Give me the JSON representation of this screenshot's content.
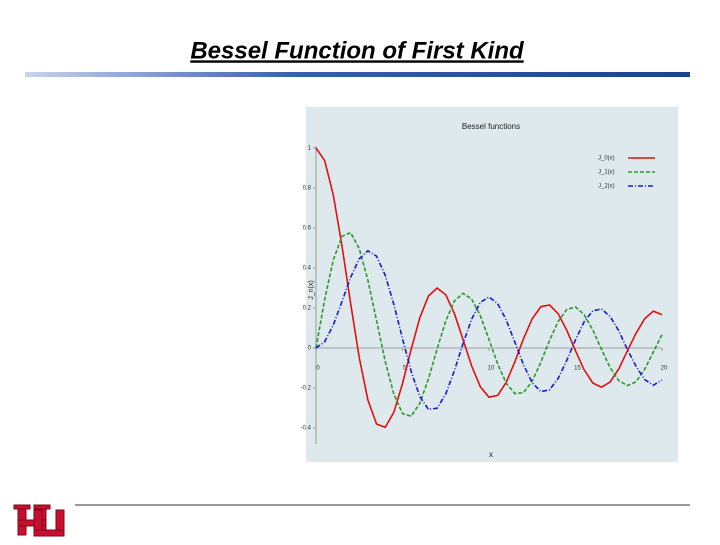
{
  "slide": {
    "title": "Bessel Function of First Kind"
  },
  "chart_data": {
    "type": "line",
    "title": "Bessel functions",
    "xlabel": "x",
    "ylabel": "J_n(x)",
    "x": [
      0,
      0.5,
      1,
      1.5,
      2,
      2.5,
      3,
      3.5,
      4,
      4.5,
      5,
      5.5,
      6,
      6.5,
      7,
      7.5,
      8,
      8.5,
      9,
      9.5,
      10,
      10.5,
      11,
      11.5,
      12,
      12.5,
      13,
      13.5,
      14,
      14.5,
      15,
      15.5,
      16,
      16.5,
      17,
      17.5,
      18,
      18.5,
      19,
      19.5,
      20
    ],
    "series": [
      {
        "name": "J_0(x)",
        "color": "#e01010",
        "dash": "solid",
        "values": [
          1,
          0.938,
          0.765,
          0.512,
          0.224,
          -0.048,
          -0.26,
          -0.38,
          -0.397,
          -0.321,
          -0.178,
          -0.007,
          0.151,
          0.26,
          0.3,
          0.266,
          0.172,
          0.042,
          -0.09,
          -0.194,
          -0.246,
          -0.237,
          -0.171,
          -0.068,
          0.048,
          0.147,
          0.207,
          0.215,
          0.171,
          0.088,
          -0.014,
          -0.109,
          -0.175,
          -0.196,
          -0.17,
          -0.105,
          -0.014,
          0.074,
          0.147,
          0.184,
          0.167
        ]
      },
      {
        "name": "J_1(x)",
        "color": "#2a9a2a",
        "dash": "dashed",
        "values": [
          0,
          0.242,
          0.44,
          0.558,
          0.577,
          0.497,
          0.339,
          0.137,
          -0.066,
          -0.231,
          -0.328,
          -0.341,
          -0.277,
          -0.154,
          -0.005,
          0.135,
          0.235,
          0.273,
          0.245,
          0.161,
          0.043,
          -0.079,
          -0.177,
          -0.228,
          -0.223,
          -0.165,
          -0.07,
          0.038,
          0.133,
          0.193,
          0.205,
          0.167,
          0.09,
          -0.006,
          -0.098,
          -0.163,
          -0.188,
          -0.169,
          -0.106,
          -0.02,
          0.067
        ]
      },
      {
        "name": "J_2(x)",
        "color": "#1a1acc",
        "dash": "dashdot",
        "values": [
          0,
          0.031,
          0.115,
          0.232,
          0.353,
          0.446,
          0.486,
          0.459,
          0.364,
          0.218,
          0.047,
          -0.117,
          -0.243,
          -0.307,
          -0.301,
          -0.23,
          -0.113,
          0.022,
          0.145,
          0.228,
          0.255,
          0.222,
          0.139,
          0.028,
          -0.085,
          -0.174,
          -0.218,
          -0.209,
          -0.152,
          -0.061,
          0.041,
          0.131,
          0.186,
          0.195,
          0.158,
          0.086,
          -0.008,
          -0.092,
          -0.158,
          -0.186,
          -0.16
        ]
      }
    ],
    "xlim": [
      0,
      20
    ],
    "xticks": [
      0,
      5,
      10,
      15,
      20
    ],
    "ylim": [
      -0.48,
      1
    ],
    "yticks": [
      1,
      0.8,
      0.6,
      0.4,
      0.2,
      0,
      -0.2,
      -0.4
    ],
    "legend": "upper right"
  }
}
